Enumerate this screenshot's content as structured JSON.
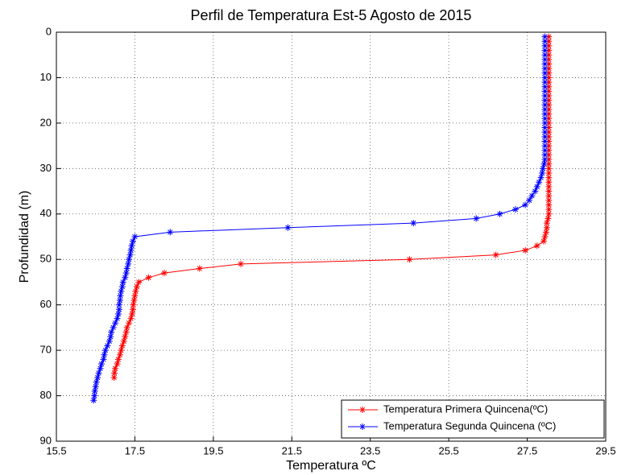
{
  "chart_data": {
    "type": "line",
    "title": "Perfil de Temperatura Est-5 Agosto de 2015",
    "xlabel": "Temperatura ºC",
    "ylabel": "Profundidad (m)",
    "xlim": [
      15.5,
      29.5
    ],
    "xticks": [
      15.5,
      17.5,
      19.5,
      21.5,
      23.5,
      25.5,
      27.5,
      29.5
    ],
    "ylim": [
      0,
      90
    ],
    "yticks": [
      0,
      10,
      20,
      30,
      40,
      50,
      60,
      70,
      80,
      90
    ],
    "y_reversed": true,
    "grid": true,
    "legend": "lower right",
    "series": [
      {
        "name": "Temperatura Primera Quincena(ºC)",
        "color": "#ff0000",
        "x": [
          28.05,
          28.05,
          28.05,
          28.05,
          28.05,
          28.05,
          28.05,
          28.05,
          28.05,
          28.05,
          28.05,
          28.05,
          28.05,
          28.05,
          28.05,
          28.05,
          28.05,
          28.05,
          28.05,
          28.05,
          28.05,
          28.05,
          28.05,
          28.05,
          28.05,
          28.05,
          28.05,
          28.05,
          28.05,
          28.05,
          28.05,
          28.05,
          28.05,
          28.05,
          28.05,
          28.05,
          28.05,
          28.05,
          28.05,
          28.05,
          28.03,
          28.0,
          28.0,
          27.98,
          27.95,
          27.92,
          27.75,
          27.45,
          26.7,
          24.5,
          20.2,
          19.15,
          18.25,
          17.85,
          17.6,
          17.55,
          17.52,
          17.5,
          17.48,
          17.46,
          17.45,
          17.43,
          17.4,
          17.35,
          17.3,
          17.28,
          17.25,
          17.22,
          17.18,
          17.15,
          17.12,
          17.08,
          17.05,
          17.0,
          16.98,
          16.97
        ],
        "y": [
          1,
          2,
          3,
          4,
          5,
          6,
          7,
          8,
          9,
          10,
          11,
          12,
          13,
          14,
          15,
          16,
          17,
          18,
          19,
          20,
          21,
          22,
          23,
          24,
          25,
          26,
          27,
          28,
          29,
          30,
          31,
          32,
          33,
          34,
          35,
          36,
          37,
          38,
          39,
          40,
          41,
          42,
          43,
          44,
          45,
          46,
          47,
          48,
          49,
          50,
          51,
          52,
          53,
          54,
          55,
          56,
          57,
          58,
          59,
          60,
          61,
          62,
          63,
          64,
          65,
          66,
          67,
          68,
          69,
          70,
          71,
          72,
          73,
          74,
          75,
          76
        ]
      },
      {
        "name": "Temperatura Segunda Quincena (ºC)",
        "color": "#0000ff",
        "x": [
          27.95,
          27.95,
          27.95,
          27.95,
          27.95,
          27.95,
          27.95,
          27.95,
          27.95,
          27.95,
          27.95,
          27.95,
          27.95,
          27.95,
          27.95,
          27.95,
          27.95,
          27.95,
          27.95,
          27.95,
          27.95,
          27.95,
          27.95,
          27.95,
          27.95,
          27.95,
          27.95,
          27.95,
          27.93,
          27.9,
          27.88,
          27.85,
          27.8,
          27.75,
          27.7,
          27.62,
          27.55,
          27.45,
          27.2,
          26.8,
          26.2,
          24.6,
          21.4,
          18.4,
          17.5,
          17.45,
          17.42,
          17.4,
          17.38,
          17.35,
          17.33,
          17.3,
          17.28,
          17.25,
          17.2,
          17.18,
          17.15,
          17.13,
          17.12,
          17.1,
          17.1,
          17.08,
          17.05,
          17.0,
          16.95,
          16.9,
          16.88,
          16.85,
          16.8,
          16.75,
          16.72,
          16.7,
          16.65,
          16.62,
          16.58,
          16.55,
          16.52,
          16.5,
          16.48,
          16.47,
          16.45
        ],
        "y": [
          1,
          2,
          3,
          4,
          5,
          6,
          7,
          8,
          9,
          10,
          11,
          12,
          13,
          14,
          15,
          16,
          17,
          18,
          19,
          20,
          21,
          22,
          23,
          24,
          25,
          26,
          27,
          28,
          29,
          30,
          31,
          32,
          33,
          34,
          35,
          36,
          37,
          38,
          39,
          40,
          41,
          42,
          43,
          44,
          45,
          46,
          47,
          48,
          49,
          50,
          51,
          52,
          53,
          54,
          55,
          56,
          57,
          58,
          59,
          60,
          61,
          62,
          63,
          64,
          65,
          66,
          67,
          68,
          69,
          70,
          71,
          72,
          73,
          74,
          75,
          76,
          77,
          78,
          79,
          80,
          81
        ]
      }
    ]
  }
}
